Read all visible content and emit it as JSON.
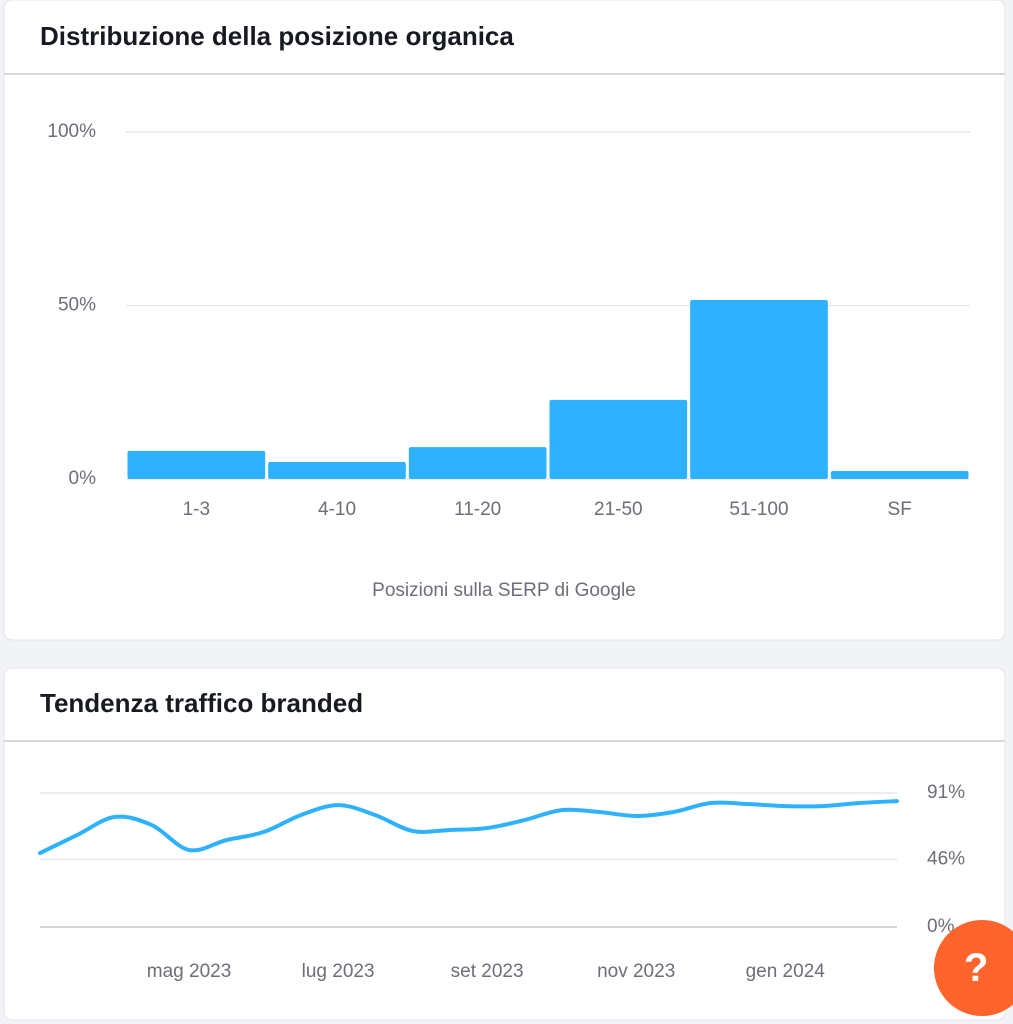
{
  "chart_data": [
    {
      "type": "bar",
      "title": "Distribuzione della posizione organica",
      "x_label": "Posizioni sulla SERP di Google",
      "categories": [
        "1-3",
        "4-10",
        "11-20",
        "21-50",
        "51-100",
        "SF"
      ],
      "values": [
        8.1,
        4.9,
        9.2,
        22.8,
        51.6,
        2.3
      ],
      "color": "#2eb2ff",
      "ylim": [
        0,
        100
      ],
      "yticks": [
        {
          "value": 0,
          "label": "0%"
        },
        {
          "value": 50,
          "label": "50%"
        },
        {
          "value": 100,
          "label": "100%"
        }
      ],
      "grid": true
    },
    {
      "type": "line",
      "title": "Tendenza traffico branded",
      "categories": [
        null,
        null,
        null,
        null,
        "mag 2023",
        null,
        null,
        null,
        "lug 2023",
        null,
        null,
        null,
        "set 2023",
        null,
        null,
        null,
        "nov 2023",
        null,
        null,
        null,
        "gen 2024",
        null,
        null,
        null
      ],
      "values": [
        50.2,
        62.5,
        74.7,
        69.2,
        52.3,
        59,
        64.5,
        76,
        82.8,
        76,
        65.2,
        65.9,
        67.2,
        72.6,
        79.4,
        78.1,
        75.4,
        78.1,
        84.2,
        83.5,
        82.1,
        82.1,
        84.2,
        85.5
      ],
      "color": "#2eb2ff",
      "ylim": [
        0,
        91
      ],
      "yticks": [
        {
          "value": 0,
          "label": "0%"
        },
        {
          "value": 46,
          "label": "46%"
        },
        {
          "value": 91,
          "label": "91%"
        }
      ],
      "grid": true
    }
  ],
  "help_button": "?"
}
